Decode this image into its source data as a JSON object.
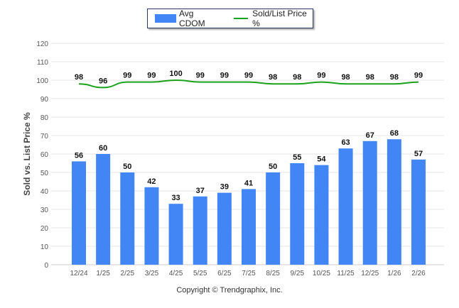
{
  "chart_data": {
    "type": "bar",
    "title": "",
    "xlabel": "",
    "ylabel": "Sold vs. List Price %",
    "ylim": [
      0,
      120
    ],
    "yticks": [
      0,
      10,
      20,
      30,
      40,
      50,
      60,
      70,
      80,
      90,
      100,
      110,
      120
    ],
    "grid": true,
    "legend_position": "top-center",
    "categories": [
      "12/24",
      "1/25",
      "2/25",
      "3/25",
      "4/25",
      "5/25",
      "6/25",
      "7/25",
      "8/25",
      "9/25",
      "10/25",
      "11/25",
      "12/25",
      "1/26",
      "2/26"
    ],
    "series": [
      {
        "name": "Avg CDOM",
        "type": "bar",
        "color": "#4285f4",
        "values": [
          56,
          60,
          50,
          42,
          33,
          37,
          39,
          41,
          50,
          55,
          54,
          63,
          67,
          68,
          57
        ]
      },
      {
        "name": "Sold/List Price %",
        "type": "line",
        "color": "#1aa31a",
        "values": [
          98,
          96,
          99,
          99,
          100,
          99,
          99,
          99,
          98,
          98,
          99,
          98,
          98,
          98,
          99
        ]
      }
    ]
  },
  "footer": {
    "copyright": "Copyright © Trendgraphix, Inc."
  }
}
